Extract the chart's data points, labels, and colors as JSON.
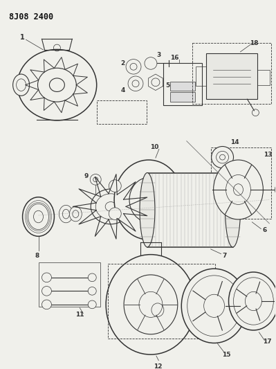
{
  "title": "8J08 2400",
  "bg_color": "#f5f5f0",
  "line_color": "#2a2a2a",
  "fig_width": 3.99,
  "fig_height": 5.33,
  "dpi": 100,
  "title_fontsize": 8.5,
  "label_fontsize": 6.5
}
